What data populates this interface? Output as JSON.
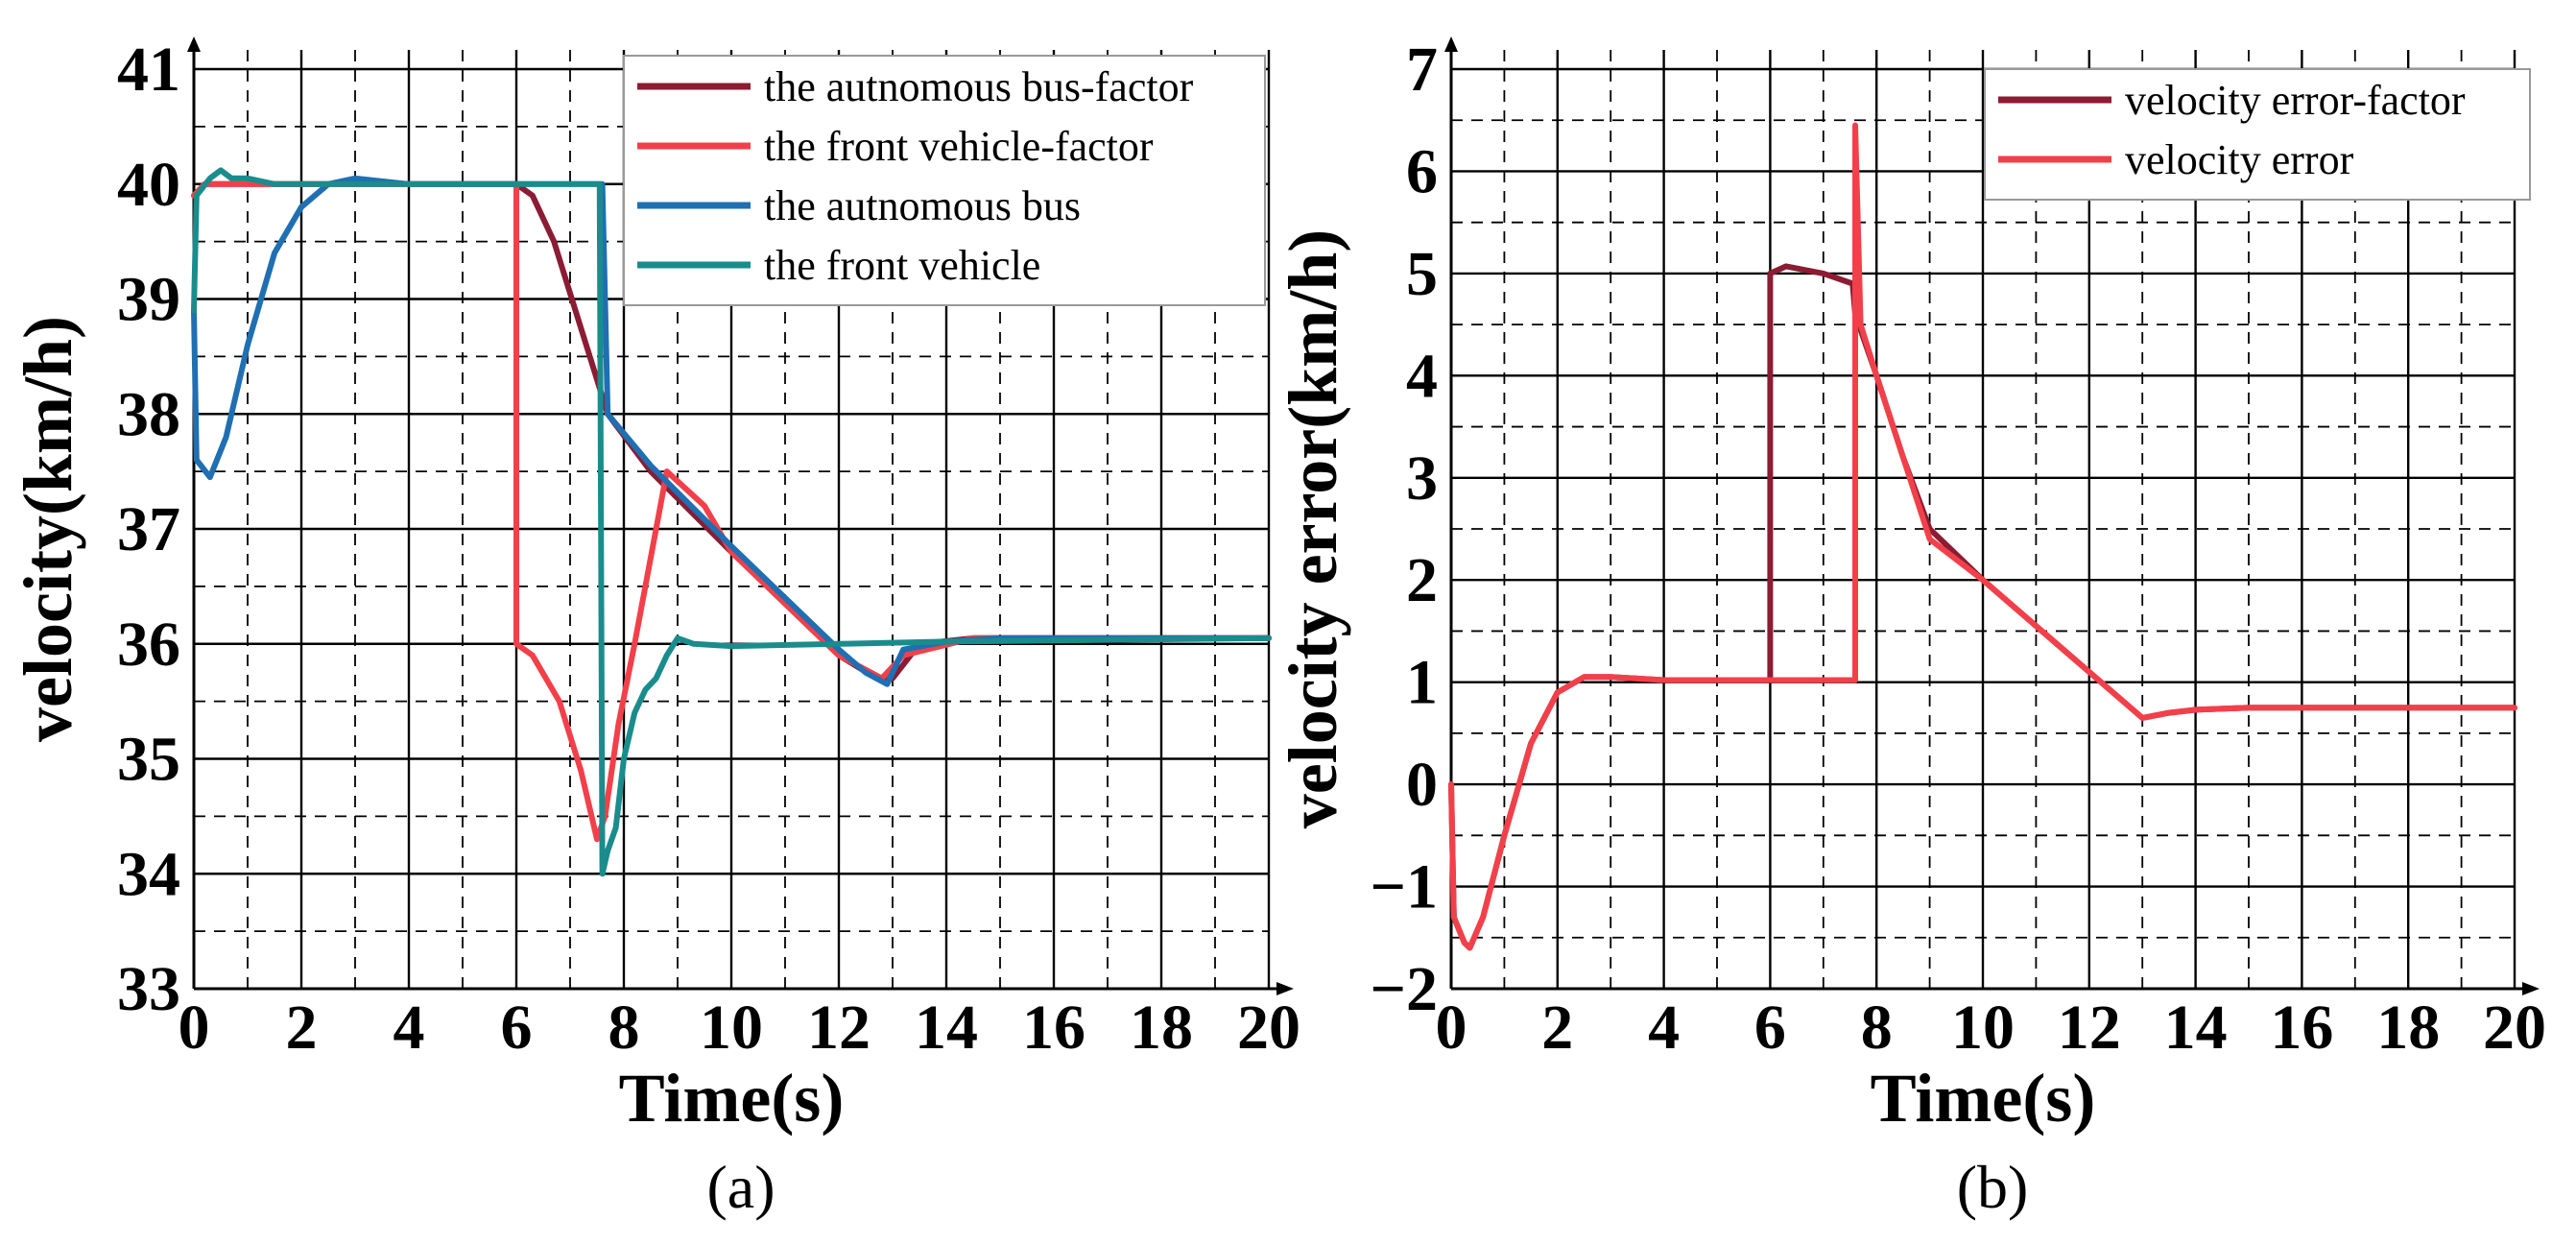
{
  "chart_data": [
    {
      "type": "line",
      "caption": "(a)",
      "xlabel": "Time(s)",
      "ylabel": "velocity(km/h)",
      "xlim": [
        0,
        20
      ],
      "ylim": [
        33,
        41
      ],
      "xticks": [
        0,
        2,
        4,
        6,
        8,
        10,
        12,
        14,
        16,
        18,
        20
      ],
      "yticks": [
        33,
        34,
        35,
        36,
        37,
        38,
        39,
        40,
        41
      ],
      "grid": "major solid, minor dashed",
      "legend_position": "top-right",
      "series": [
        {
          "name": "the autnomous bus-factor",
          "color": "#8b1c33",
          "points": [
            [
              0,
              39.9
            ],
            [
              0.2,
              40.0
            ],
            [
              6.0,
              40.0
            ],
            [
              6.3,
              39.9
            ],
            [
              6.7,
              39.5
            ],
            [
              7.1,
              38.9
            ],
            [
              7.5,
              38.3
            ],
            [
              7.7,
              38.0
            ],
            [
              8.5,
              37.5
            ],
            [
              10.0,
              36.8
            ],
            [
              12.0,
              35.9
            ],
            [
              12.7,
              35.7
            ],
            [
              13.0,
              35.7
            ],
            [
              13.5,
              36.0
            ],
            [
              14.5,
              36.05
            ],
            [
              20,
              36.05
            ]
          ]
        },
        {
          "name": "the front vehicle-factor",
          "color": "#f2404a",
          "points": [
            [
              0,
              39.9
            ],
            [
              0.2,
              40.0
            ],
            [
              6.0,
              40.0
            ],
            [
              6.0,
              36.0
            ],
            [
              6.3,
              35.9
            ],
            [
              6.8,
              35.5
            ],
            [
              7.2,
              34.9
            ],
            [
              7.5,
              34.3
            ],
            [
              7.65,
              34.5
            ],
            [
              7.9,
              35.3
            ],
            [
              8.2,
              36.0
            ],
            [
              8.8,
              37.5
            ],
            [
              9.5,
              37.2
            ],
            [
              10.0,
              36.8
            ],
            [
              12.0,
              35.9
            ],
            [
              12.8,
              35.7
            ],
            [
              13.2,
              35.9
            ],
            [
              14.5,
              36.05
            ],
            [
              20,
              36.05
            ]
          ]
        },
        {
          "name": "the autnomous bus",
          "color": "#1f6fb2",
          "points": [
            [
              0,
              38.9
            ],
            [
              0.05,
              37.6
            ],
            [
              0.3,
              37.45
            ],
            [
              0.6,
              37.8
            ],
            [
              1.0,
              38.6
            ],
            [
              1.5,
              39.4
            ],
            [
              2.0,
              39.8
            ],
            [
              2.5,
              40.0
            ],
            [
              3.0,
              40.05
            ],
            [
              4.0,
              40.0
            ],
            [
              7.6,
              40.0
            ],
            [
              7.7,
              38.0
            ],
            [
              8.5,
              37.55
            ],
            [
              10.0,
              36.85
            ],
            [
              12.0,
              35.95
            ],
            [
              12.5,
              35.75
            ],
            [
              12.9,
              35.65
            ],
            [
              13.2,
              35.95
            ],
            [
              14.0,
              36.02
            ],
            [
              15.0,
              36.05
            ],
            [
              20,
              36.05
            ]
          ]
        },
        {
          "name": "the front vehicle",
          "color": "#1a8c8c",
          "points": [
            [
              0,
              38.9
            ],
            [
              0.05,
              39.9
            ],
            [
              0.3,
              40.05
            ],
            [
              0.5,
              40.12
            ],
            [
              0.7,
              40.05
            ],
            [
              1.0,
              40.05
            ],
            [
              1.5,
              40.0
            ],
            [
              2.0,
              40.0
            ],
            [
              7.55,
              40.0
            ],
            [
              7.6,
              34.0
            ],
            [
              7.7,
              34.2
            ],
            [
              7.85,
              34.4
            ],
            [
              8.0,
              35.0
            ],
            [
              8.2,
              35.4
            ],
            [
              8.4,
              35.6
            ],
            [
              8.6,
              35.7
            ],
            [
              8.8,
              35.9
            ],
            [
              9.0,
              36.05
            ],
            [
              9.3,
              36.0
            ],
            [
              10.0,
              35.98
            ],
            [
              12.0,
              36.0
            ],
            [
              14.0,
              36.02
            ],
            [
              20,
              36.05
            ]
          ]
        }
      ]
    },
    {
      "type": "line",
      "caption": "(b)",
      "xlabel": "Time(s)",
      "ylabel": "velocity error(km/h)",
      "xlim": [
        0,
        20
      ],
      "ylim": [
        -2,
        7
      ],
      "xticks": [
        0,
        2,
        4,
        6,
        8,
        10,
        12,
        14,
        16,
        18,
        20
      ],
      "yticks": [
        -2,
        -1,
        0,
        1,
        2,
        3,
        4,
        5,
        6,
        7
      ],
      "ytick_labels": [
        "−2",
        "−1",
        "0",
        "1",
        "2",
        "3",
        "4",
        "5",
        "6",
        "7"
      ],
      "grid": "major solid, minor dashed",
      "legend_position": "top-right",
      "series": [
        {
          "name": "velocity error-factor",
          "color": "#8b1c33",
          "points": [
            [
              0,
              0
            ],
            [
              0.05,
              -1.3
            ],
            [
              0.25,
              -1.55
            ],
            [
              0.35,
              -1.6
            ],
            [
              0.6,
              -1.3
            ],
            [
              1.0,
              -0.5
            ],
            [
              1.5,
              0.4
            ],
            [
              2.0,
              0.9
            ],
            [
              2.5,
              1.05
            ],
            [
              3.0,
              1.05
            ],
            [
              4.0,
              1.02
            ],
            [
              6.0,
              1.02
            ],
            [
              6.0,
              5.0
            ],
            [
              6.3,
              5.07
            ],
            [
              7.0,
              5.0
            ],
            [
              7.55,
              4.9
            ],
            [
              7.6,
              4.6
            ],
            [
              8.0,
              4.0
            ],
            [
              8.5,
              3.2
            ],
            [
              9.0,
              2.5
            ],
            [
              10.0,
              2.0
            ],
            [
              12.0,
              1.1
            ],
            [
              13.0,
              0.65
            ],
            [
              13.5,
              0.7
            ],
            [
              14.0,
              0.73
            ],
            [
              15.0,
              0.75
            ],
            [
              20,
              0.75
            ]
          ]
        },
        {
          "name": "velocity error",
          "color": "#f2404a",
          "points": [
            [
              0,
              0
            ],
            [
              0.05,
              -1.3
            ],
            [
              0.25,
              -1.55
            ],
            [
              0.35,
              -1.6
            ],
            [
              0.6,
              -1.3
            ],
            [
              1.0,
              -0.5
            ],
            [
              1.5,
              0.4
            ],
            [
              2.0,
              0.9
            ],
            [
              2.5,
              1.05
            ],
            [
              3.0,
              1.05
            ],
            [
              4.0,
              1.02
            ],
            [
              7.6,
              1.02
            ],
            [
              7.6,
              6.45
            ],
            [
              7.7,
              4.5
            ],
            [
              8.0,
              4.0
            ],
            [
              8.5,
              3.2
            ],
            [
              9.0,
              2.4
            ],
            [
              10.0,
              2.0
            ],
            [
              12.0,
              1.1
            ],
            [
              13.0,
              0.65
            ],
            [
              13.5,
              0.7
            ],
            [
              14.0,
              0.73
            ],
            [
              15.0,
              0.75
            ],
            [
              20,
              0.75
            ]
          ]
        }
      ]
    }
  ]
}
